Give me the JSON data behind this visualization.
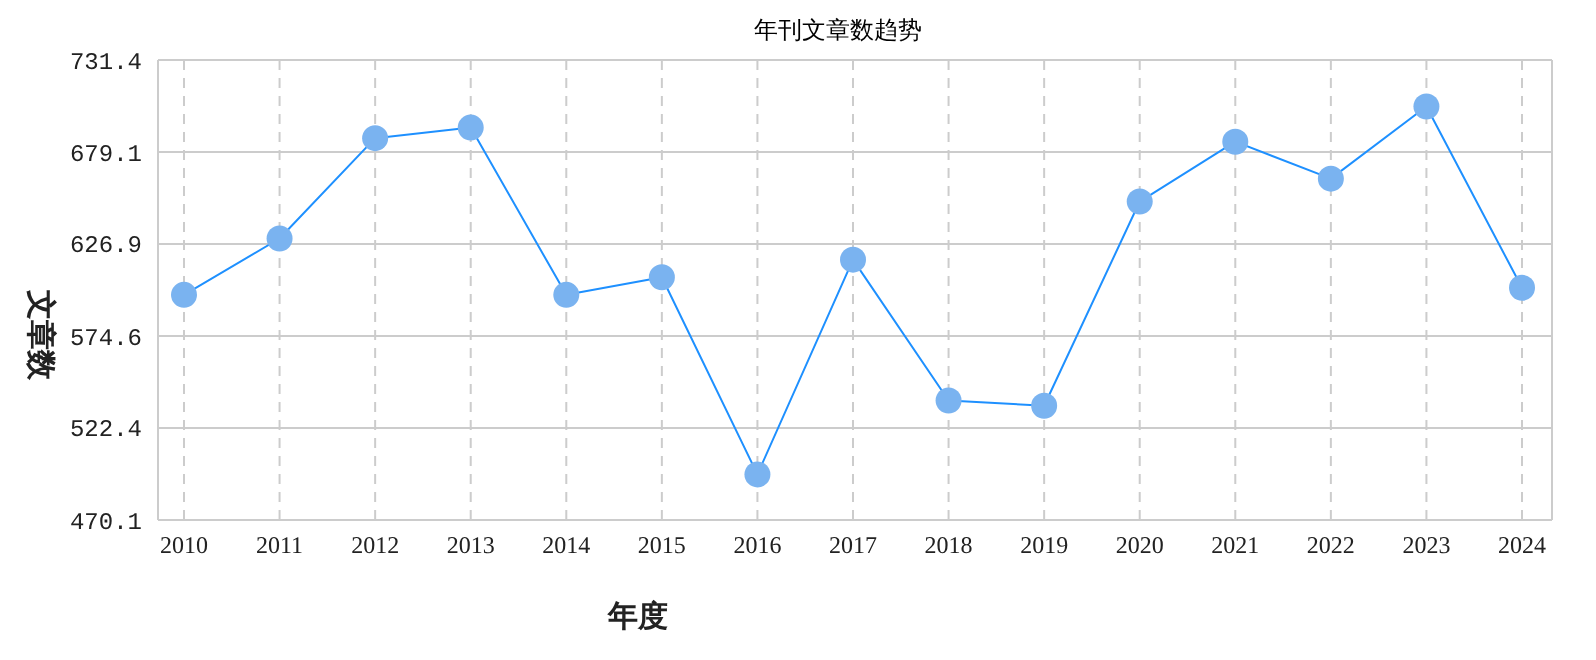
{
  "chart_data": {
    "type": "line",
    "title": "年刊文章数趋势",
    "xlabel": "年度",
    "ylabel": "文章数",
    "categories": [
      "2010",
      "2011",
      "2012",
      "2013",
      "2014",
      "2015",
      "2016",
      "2017",
      "2018",
      "2019",
      "2020",
      "2021",
      "2022",
      "2023",
      "2024"
    ],
    "series": [
      {
        "color": "#1e90ff",
        "values": [
          598,
          630,
          687,
          693,
          598,
          608,
          496,
          618,
          538,
          535,
          651,
          685,
          664,
          705,
          602
        ]
      }
    ],
    "ylim": [
      470.1,
      731.4
    ],
    "yticks": [
      470.1,
      522.4,
      574.6,
      626.9,
      679.1,
      731.4
    ],
    "grid": true,
    "marker": "circle"
  }
}
